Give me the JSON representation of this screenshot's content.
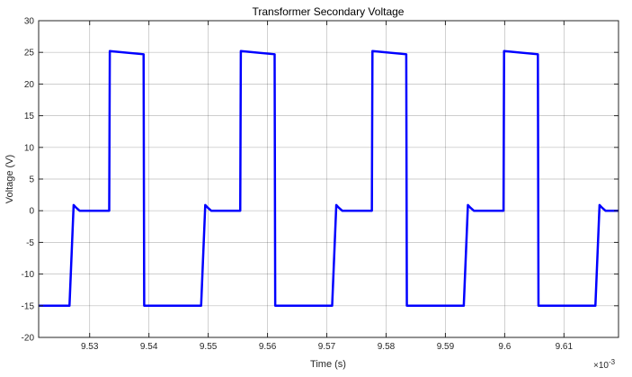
{
  "chart_data": {
    "type": "line",
    "title": "Transformer Secondary Voltage",
    "xlabel": "Time (s)",
    "ylabel": "Voltage (V)",
    "x_multiplier_label": "×10",
    "x_multiplier_exp": "-3",
    "xlim": [
      9.5214,
      9.6192
    ],
    "ylim": [
      -20,
      30
    ],
    "xticks": [
      9.53,
      9.54,
      9.55,
      9.56,
      9.57,
      9.58,
      9.59,
      9.6,
      9.61
    ],
    "xtick_labels": [
      "9.53",
      "9.54",
      "9.55",
      "9.56",
      "9.57",
      "9.58",
      "9.59",
      "9.6",
      "9.61"
    ],
    "yticks": [
      -20,
      -15,
      -10,
      -5,
      0,
      5,
      10,
      15,
      20,
      25,
      30
    ],
    "ytick_labels": [
      "-20",
      "-15",
      "-10",
      "-5",
      "0",
      "5",
      "10",
      "15",
      "20",
      "25",
      "30"
    ],
    "grid": true,
    "line_color": "#0000ff",
    "period": 0.02215,
    "series": [
      {
        "x": [
          9.5214,
          9.5266,
          9.5273,
          9.5277,
          9.5283,
          9.5333,
          9.5334,
          9.5391,
          9.5392,
          9.5441,
          9.5488,
          9.5495,
          9.5499,
          9.5505,
          9.5554,
          9.5555,
          9.5612,
          9.5613,
          9.5662,
          9.5709,
          9.5716,
          9.572,
          9.5726,
          9.5776,
          9.5777,
          9.5834,
          9.5835,
          9.5884,
          9.5931,
          9.5938,
          9.5942,
          9.5948,
          9.5998,
          9.5999,
          9.6056,
          9.6057,
          9.6106,
          9.6153,
          9.616,
          9.6164,
          9.617,
          9.6192
        ],
        "y": [
          -15,
          -15,
          0.9,
          0.5,
          0,
          0,
          25.2,
          24.7,
          -15,
          -15,
          -15,
          0.9,
          0.5,
          0,
          0,
          25.2,
          24.7,
          -15,
          -15,
          -15,
          0.9,
          0.5,
          0,
          0,
          25.2,
          24.7,
          -15,
          -15,
          -15,
          0.9,
          0.5,
          0,
          0,
          25.2,
          24.7,
          -15,
          -15,
          -15,
          0.9,
          0.5,
          0,
          0
        ]
      }
    ]
  }
}
